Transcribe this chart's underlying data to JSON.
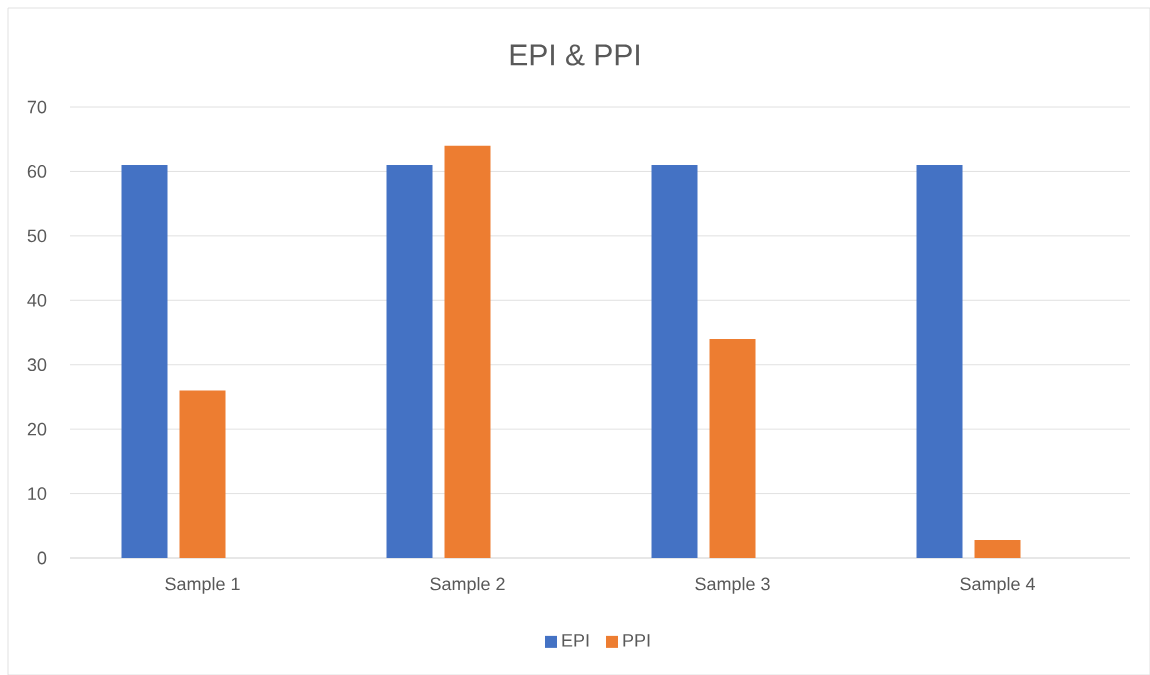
{
  "chart_data": {
    "type": "bar",
    "title": "EPI & PPI",
    "categories": [
      "Sample 1",
      "Sample 2",
      "Sample 3",
      "Sample 4"
    ],
    "series": [
      {
        "name": "EPI",
        "color": "#4472c4",
        "values": [
          61,
          61,
          61,
          61
        ]
      },
      {
        "name": "PPI",
        "color": "#ed7d31",
        "values": [
          26,
          64,
          34,
          2.8
        ]
      }
    ],
    "ylim": [
      0,
      70
    ],
    "yticks": [
      0,
      10,
      20,
      30,
      40,
      50,
      60,
      70
    ],
    "grid": "y",
    "legend": "bottom"
  }
}
